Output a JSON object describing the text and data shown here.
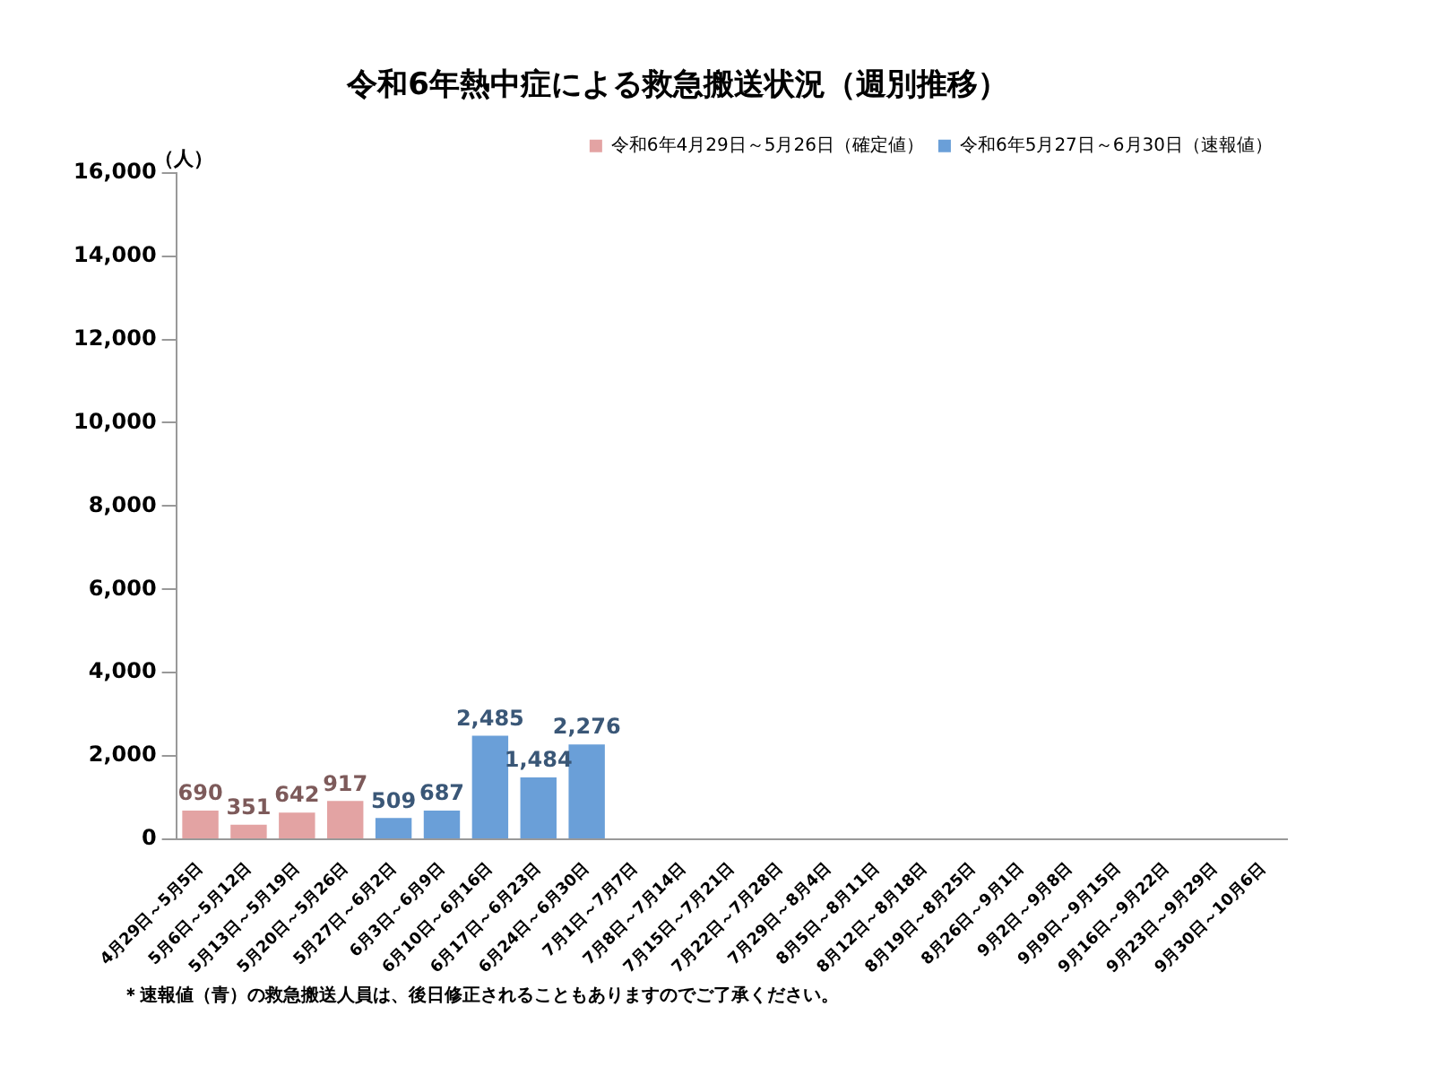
{
  "chart_data": {
    "type": "bar",
    "title": "令和6年熱中症による救急搬送状況（週別推移）",
    "ylabel": "（人）",
    "categories": [
      "4月29日～5月5日",
      "5月6日～5月12日",
      "5月13日～5月19日",
      "5月20日～5月26日",
      "5月27日～6月2日",
      "6月3日～6月9日",
      "6月10日～6月16日",
      "6月17日～6月23日",
      "6月24日～6月30日",
      "7月1日～7月7日",
      "7月8日～7月14日",
      "7月15日～7月21日",
      "7月22日～7月28日",
      "7月29日～8月4日",
      "8月5日～8月11日",
      "8月12日～8月18日",
      "8月19日～8月25日",
      "8月26日～9月1日",
      "9月2日～9月8日",
      "9月9日～9月15日",
      "9月16日～9月22日",
      "9月23日～9月29日",
      "9月30日～10月6日"
    ],
    "series": [
      {
        "name": "令和6年4月29日～5月26日（確定値）",
        "color": "#e3a3a3",
        "values": [
          690,
          351,
          642,
          917,
          null,
          null,
          null,
          null,
          null,
          null,
          null,
          null,
          null,
          null,
          null,
          null,
          null,
          null,
          null,
          null,
          null,
          null,
          null
        ],
        "value_labels": [
          "690",
          "351",
          "642",
          "917",
          null,
          null,
          null,
          null,
          null,
          null,
          null,
          null,
          null,
          null,
          null,
          null,
          null,
          null,
          null,
          null,
          null,
          null,
          null
        ]
      },
      {
        "name": "令和6年5月27日～6月30日（速報値）",
        "color": "#6a9fd8",
        "values": [
          null,
          null,
          null,
          null,
          509,
          687,
          2485,
          1484,
          2276,
          null,
          null,
          null,
          null,
          null,
          null,
          null,
          null,
          null,
          null,
          null,
          null,
          null,
          null
        ],
        "value_labels": [
          null,
          null,
          null,
          null,
          "509",
          "687",
          "2,485",
          "1,484",
          "2,276",
          null,
          null,
          null,
          null,
          null,
          null,
          null,
          null,
          null,
          null,
          null,
          null,
          null,
          null
        ]
      }
    ],
    "ylim": [
      0,
      16000
    ],
    "yticks": [
      0,
      {
        "value": 2000,
        "label": "2,000"
      },
      {
        "value": 4000,
        "label": "4,000"
      },
      {
        "value": 6000,
        "label": "6,000"
      },
      {
        "value": 8000,
        "label": "8,000"
      },
      {
        "value": 10000,
        "label": "10,000"
      },
      {
        "value": 12000,
        "label": "12,000"
      },
      {
        "value": 14000,
        "label": "14,000"
      },
      {
        "value": 16000,
        "label": "16,000"
      }
    ],
    "legend": "top right",
    "annotations": [
      "＊速報値（青）の救急搬送人員は、後日修正されることもありますのでご了承ください。"
    ]
  }
}
